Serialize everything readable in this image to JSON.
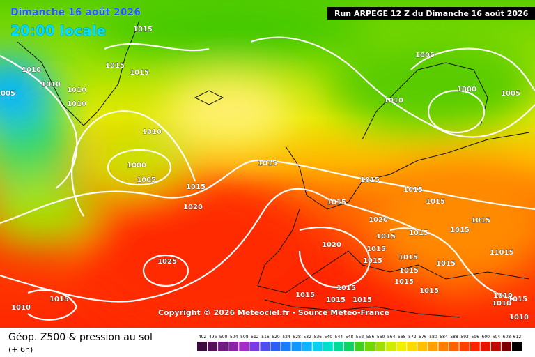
{
  "header": {
    "date": "Dimanche 16 août 2026",
    "time": "20:00 locale",
    "run": "Run ARPEGE 12 Z du Dimanche 16 août 2026"
  },
  "copyright": "Copyright © 2026 Meteociel.fr - Source Meteo-France",
  "footer": {
    "title": "Géop. Z500 & pression au sol",
    "subtitle": "(+ 6h)"
  },
  "isobar_labels": [
    "1015",
    "1015",
    "1015",
    "1010",
    "1010",
    "1010",
    "1010",
    "1005",
    "1010",
    "1000",
    "1005",
    "1015",
    "1020",
    "1015",
    "1015",
    "1015",
    "1015",
    "1015",
    "1010",
    "1005",
    "1000",
    "1005",
    "1020",
    "1015",
    "1015",
    "1015",
    "1015",
    "1020",
    "1015",
    "1015",
    "1015",
    "1015",
    "1015",
    "11015",
    "1015",
    "1015",
    "1015",
    "1015",
    "1015",
    "1015",
    "1025",
    "1015",
    "1010",
    "1010",
    "1010",
    "1015",
    "1010"
  ],
  "scale": {
    "values": [
      492,
      496,
      500,
      504,
      508,
      512,
      516,
      520,
      524,
      528,
      532,
      536,
      540,
      544,
      548,
      552,
      556,
      560,
      564,
      568,
      572,
      576,
      580,
      584,
      588,
      592,
      596,
      600,
      604,
      608,
      612
    ],
    "colors": [
      "#3c0a3c",
      "#55105a",
      "#6e1a82",
      "#8a22a8",
      "#a62cc8",
      "#7a3ce0",
      "#4f4ff0",
      "#2b5ff5",
      "#1c7cff",
      "#1496ff",
      "#10b4ff",
      "#08d0f0",
      "#00e0c8",
      "#00dc96",
      "#10d264",
      "#40d020",
      "#70d800",
      "#a0e000",
      "#d0ec00",
      "#f0f000",
      "#ffdc00",
      "#ffc000",
      "#ffa000",
      "#ff8000",
      "#ff6000",
      "#ff4000",
      "#ff2400",
      "#e61400",
      "#c00a00",
      "#7a0000",
      "#000000"
    ]
  }
}
